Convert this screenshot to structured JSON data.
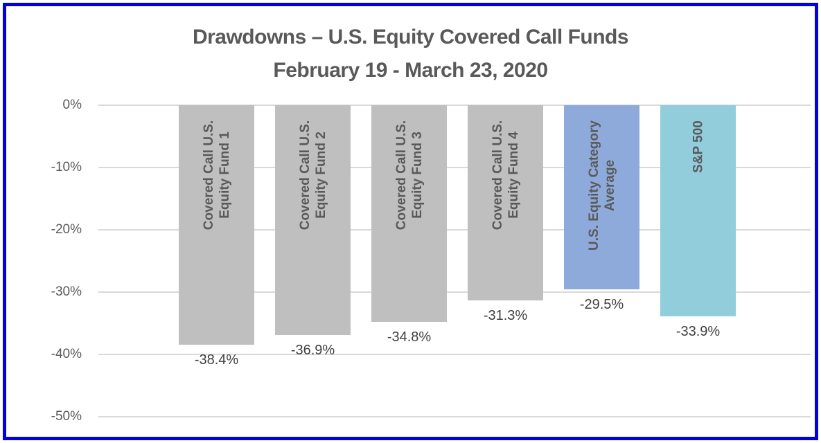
{
  "chart_data": {
    "type": "bar",
    "title": "Drawdowns – U.S. Equity Covered Call Funds",
    "subtitle": "February 19 - March 23, 2020",
    "categories": [
      "Covered Call U.S. Equity Fund 1",
      "Covered Call U.S. Equity Fund 2",
      "Covered Call U.S. Equity Fund 3",
      "Covered Call U.S. Equity Fund 4",
      "U.S. Equity Category Average",
      "S&P 500"
    ],
    "category_label_lines": [
      [
        "Covered Call U.S.",
        "Equity Fund 1"
      ],
      [
        "Covered Call U.S.",
        "Equity Fund 2"
      ],
      [
        "Covered Call U.S.",
        "Equity Fund 3"
      ],
      [
        "Covered Call U.S.",
        "Equity Fund 4"
      ],
      [
        "U.S. Equity Category",
        "Average"
      ],
      [
        "S&P 500"
      ]
    ],
    "values": [
      -38.4,
      -36.9,
      -34.8,
      -31.3,
      -29.5,
      -33.9
    ],
    "value_labels": [
      "-38.4%",
      "-36.9%",
      "-34.8%",
      "-31.3%",
      "-29.5%",
      "-33.9%"
    ],
    "bar_colors": [
      "#BFBFBF",
      "#BFBFBF",
      "#BFBFBF",
      "#BFBFBF",
      "#8EAADB",
      "#92CDDC"
    ],
    "y_axis": {
      "ticks": [
        {
          "label": "0%",
          "value": 0
        },
        {
          "label": "-10%",
          "value": -10
        },
        {
          "label": "-20%",
          "value": -20
        },
        {
          "label": "-30%",
          "value": -30
        },
        {
          "label": "-40%",
          "value": -40
        },
        {
          "label": "-50%",
          "value": -50
        }
      ],
      "range": [
        -50,
        0
      ]
    },
    "xlabel": "",
    "ylabel": "",
    "grid": true,
    "legend": "none",
    "value_label_position": "below-bar",
    "category_label_position": "inside-top-rotated-90",
    "colors": {
      "frame_border": "#0202DD",
      "grid": "#D9D9D9",
      "title_text": "#595959",
      "axis_text": "#595959",
      "value_label_text": "#404040",
      "category_label_text": "#595959"
    }
  }
}
